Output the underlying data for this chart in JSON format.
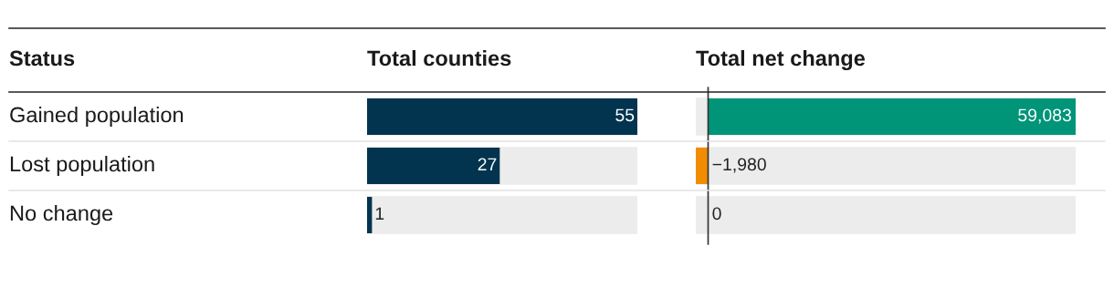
{
  "chart_data": [
    {
      "type": "bar",
      "orientation": "horizontal",
      "title": "Total counties",
      "ylabel": "Status",
      "categories": [
        "Gained population",
        "Lost population",
        "No change"
      ],
      "values": [
        55,
        27,
        1
      ],
      "color": "#02344f",
      "xlim": [
        0,
        55
      ],
      "data_labels": true
    },
    {
      "type": "bar",
      "orientation": "horizontal",
      "title": "Total net change",
      "categories": [
        null,
        null,
        null
      ],
      "values": [
        59083,
        -1980,
        0
      ],
      "colors": [
        "#009478",
        "#f28c00",
        "#009478"
      ],
      "value_labels": [
        "59,083",
        "−1,980",
        "0"
      ],
      "xlim": [
        -1980,
        59083
      ],
      "ref_lines": [
        {
          "axis": "x",
          "value": 0,
          "color": "#333333"
        }
      ]
    }
  ]
}
